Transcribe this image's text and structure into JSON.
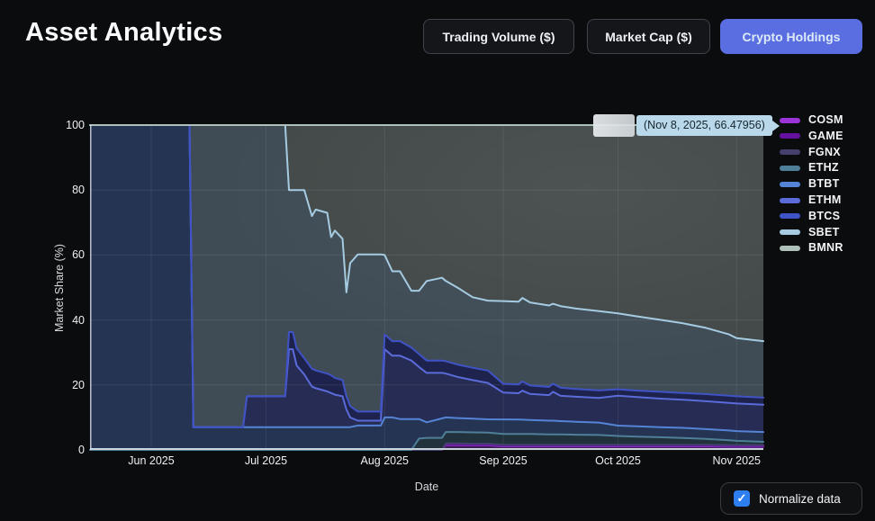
{
  "header": {
    "title": "Asset Analytics",
    "tabs": [
      {
        "label": "Trading Volume ($)",
        "active": false
      },
      {
        "label": "Market Cap ($)",
        "active": false
      },
      {
        "label": "Crypto Holdings",
        "active": true
      }
    ]
  },
  "tooltip": {
    "text": "(Nov 8, 2025, 66.47956)"
  },
  "controls": {
    "normalize_label": "Normalize data",
    "normalize_checked": true
  },
  "icons": {
    "checkbox_check": "✓"
  },
  "theme": {
    "accent": "#5b6ee1",
    "tooltip_bg": "#b9d9ea",
    "checkbox_blue": "#2d7ff0",
    "background": "#0b0c0e"
  },
  "chart_data": {
    "type": "area",
    "stacked": true,
    "normalized": true,
    "title": "",
    "xlabel": "Date",
    "ylabel": "Market Share (%)",
    "ylim": [
      0,
      100
    ],
    "grid": true,
    "legend_position": "right",
    "fill_opacity": 0.34,
    "y_ticks": [
      0,
      20,
      40,
      60,
      80,
      100
    ],
    "x_ticks": [
      {
        "label": "Jun 2025",
        "day": 16
      },
      {
        "label": "Jul 2025",
        "day": 46
      },
      {
        "label": "Aug 2025",
        "day": 77
      },
      {
        "label": "Sep 2025",
        "day": 108
      },
      {
        "label": "Oct 2025",
        "day": 138
      },
      {
        "label": "Nov 2025",
        "day": 169
      }
    ],
    "x_start": "May 16, 2025",
    "x_end": "Nov 8, 2025",
    "total_days": 176,
    "hover_point": {
      "x_label": "Nov 8, 2025",
      "value": 66.47956
    },
    "days": [
      0,
      26,
      27,
      40,
      41,
      51,
      52,
      53,
      54,
      56,
      58,
      59,
      62,
      63,
      64,
      66,
      67,
      68,
      70,
      76,
      77,
      79,
      81,
      84,
      86,
      88,
      92,
      93,
      96,
      100,
      104,
      108,
      112,
      113,
      115,
      120,
      121,
      123,
      127,
      133,
      138,
      143,
      149,
      155,
      161,
      167,
      169,
      176
    ],
    "series": [
      {
        "name": "COSM",
        "color": "#9b34d8",
        "values": [
          0,
          0,
          0,
          0,
          0,
          0,
          0,
          0,
          0,
          0,
          0,
          0,
          0,
          0,
          0,
          0,
          0,
          0,
          0,
          0,
          0,
          0,
          0,
          0,
          0,
          0,
          0,
          1.5,
          1.5,
          1.4,
          1.4,
          1.1,
          1.1,
          1.1,
          1.1,
          1.1,
          1.1,
          1.1,
          1.1,
          1.1,
          1.1,
          1.1,
          1.1,
          1.1,
          1.1,
          1.0,
          1.0,
          1.0
        ]
      },
      {
        "name": "GAME",
        "color": "#63119e",
        "values": [
          0,
          0,
          0,
          0,
          0,
          0,
          0,
          0,
          0,
          0,
          0,
          0,
          0,
          0,
          0,
          0,
          0,
          0,
          0,
          0,
          0,
          0,
          0,
          0,
          0,
          0,
          0,
          0.2,
          0.2,
          0.2,
          0.2,
          0.2,
          0.2,
          0.2,
          0.2,
          0.2,
          0.2,
          0.2,
          0.2,
          0.2,
          0.2,
          0.2,
          0.2,
          0.2,
          0.2,
          0.2,
          0.2,
          0.2
        ]
      },
      {
        "name": "FGNX",
        "color": "#45406e",
        "values": [
          0,
          0,
          0,
          0,
          0,
          0,
          0,
          0,
          0,
          0,
          0,
          0,
          0,
          0,
          0,
          0,
          0,
          0,
          0,
          0,
          0,
          0,
          0,
          0,
          0,
          0,
          0,
          0.3,
          0.3,
          0.3,
          0.3,
          0.3,
          0.3,
          0.3,
          0.3,
          0.3,
          0.3,
          0.3,
          0.3,
          0.3,
          0.3,
          0.3,
          0.3,
          0.3,
          0.3,
          0.3,
          0.3,
          0.3
        ]
      },
      {
        "name": "ETHZ",
        "color": "#4f7f98",
        "values": [
          0,
          0,
          0,
          0,
          0,
          0,
          0,
          0,
          0,
          0,
          0,
          0,
          0,
          0,
          0,
          0,
          0,
          0,
          0,
          0,
          0,
          0,
          0,
          0,
          3.5,
          3.7,
          3.7,
          3.5,
          3.5,
          3.5,
          3.4,
          3.3,
          3.3,
          3.3,
          3.3,
          3.2,
          3.2,
          3.2,
          3.1,
          3.0,
          2.7,
          2.5,
          2.3,
          2.1,
          1.8,
          1.5,
          1.3,
          1.0
        ]
      },
      {
        "name": "BTBT",
        "color": "#5583d6",
        "values": [
          100,
          100,
          7,
          7,
          7,
          7,
          7,
          7,
          7,
          7,
          7,
          7,
          7,
          7,
          7,
          7,
          7,
          7,
          7.5,
          7.5,
          10,
          10,
          9.5,
          9.5,
          6,
          4.8,
          6,
          4.5,
          4.3,
          4.2,
          4.1,
          4.5,
          4.4,
          4.4,
          4.3,
          4.2,
          4.2,
          4.1,
          4.0,
          3.8,
          3.2,
          3.2,
          3.1,
          3.1,
          3.0,
          3.0,
          3.0,
          3.0
        ]
      },
      {
        "name": "ETHM",
        "color": "#5b6bd9",
        "values": [
          0,
          0,
          0,
          0,
          9.5,
          9.5,
          24,
          24,
          19,
          16.2,
          12.5,
          12,
          11,
          10.5,
          10,
          9.5,
          5.5,
          3,
          1.5,
          1.5,
          21,
          19,
          19.5,
          18,
          16,
          15.2,
          14,
          13.5,
          12.7,
          11.9,
          11.2,
          8.3,
          8.1,
          8.9,
          8.0,
          7.9,
          8.9,
          7.8,
          7.7,
          7.6,
          9.2,
          9.0,
          8.8,
          8.7,
          8.6,
          8.5,
          8.5,
          8.4
        ]
      },
      {
        "name": "BTCS",
        "color": "#4053c6",
        "values": [
          0,
          0,
          0,
          0,
          0,
          0,
          5.3,
          5.3,
          5.3,
          5.0,
          5.5,
          5.5,
          5.5,
          5.5,
          5.2,
          5.0,
          4.0,
          3.5,
          2.8,
          2.8,
          4.5,
          4.5,
          4.5,
          4.0,
          4.0,
          3.8,
          3.8,
          3.8,
          3.8,
          3.8,
          3.8,
          2.7,
          2.7,
          2.8,
          2.6,
          2.5,
          2.5,
          2.5,
          2.4,
          2.3,
          2.0,
          2.0,
          2.1,
          2.1,
          2.2,
          2.2,
          2.2,
          2.2
        ]
      },
      {
        "name": "SBET",
        "color": "#a5cbe2",
        "values": [
          0,
          0,
          93,
          93,
          83.5,
          83.5,
          43.7,
          43.7,
          48.7,
          51.8,
          47,
          49.5,
          49.5,
          42.5,
          45.3,
          43.5,
          32,
          44,
          48.4,
          48.4,
          24.5,
          21.5,
          21.5,
          17.5,
          19.5,
          24.5,
          25.5,
          24.7,
          23.7,
          21.7,
          21.5,
          25.5,
          25.4,
          25.7,
          25.5,
          25.1,
          24.6,
          25.2,
          24.8,
          24.4,
          23.4,
          22.9,
          22.2,
          21.5,
          20.4,
          18.9,
          17.9,
          17.4
        ]
      },
      {
        "name": "BMNR",
        "color": "#adc0ba",
        "values": [
          0,
          0,
          0,
          0,
          0,
          0,
          20,
          20,
          20,
          20,
          28,
          26,
          27,
          34.5,
          32.5,
          35,
          51.5,
          42.5,
          39.8,
          39.8,
          40,
          45,
          45,
          51,
          51,
          48,
          47,
          48,
          50,
          53,
          54,
          54.3,
          54.2,
          53.1,
          54.5,
          55.6,
          55,
          55.9,
          56.6,
          57.2,
          58,
          59,
          60,
          61.2,
          62.5,
          64.5,
          65.6,
          66.5
        ]
      }
    ]
  }
}
